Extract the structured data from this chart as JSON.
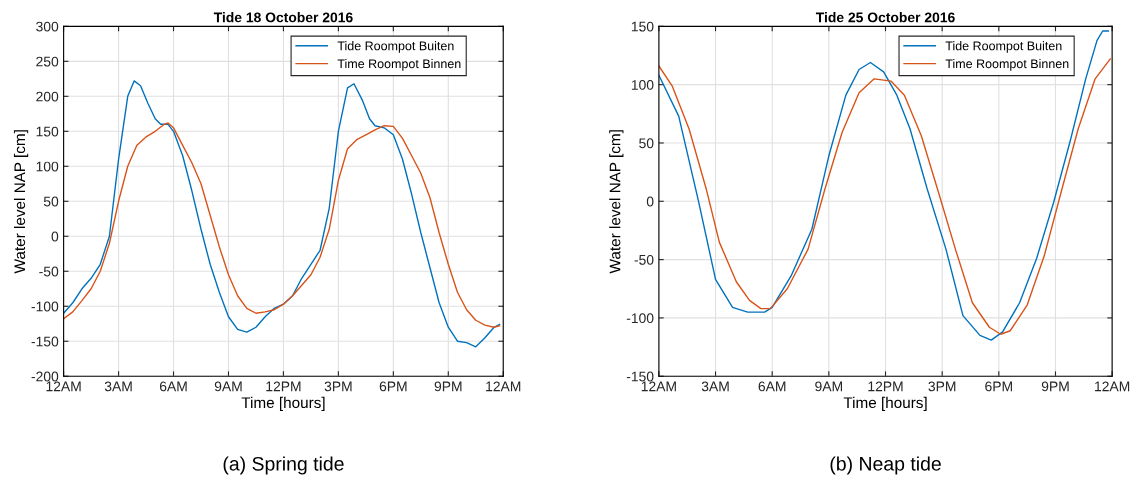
{
  "chart_data": [
    {
      "type": "line",
      "title": "Tide 18 October 2016",
      "xlabel": "Time [hours]",
      "ylabel": "Water level NAP [cm]",
      "xlim": [
        "2016-10-18T00:00",
        "2016-10-19T00:00"
      ],
      "xticks": [
        {
          "value": "2016-10-18T00:00",
          "label": "12AM"
        },
        {
          "value": "2016-10-18T03:00",
          "label": "3AM"
        },
        {
          "value": "2016-10-18T06:00",
          "label": "6AM"
        },
        {
          "value": "2016-10-18T09:00",
          "label": "9AM"
        },
        {
          "value": "2016-10-18T12:00",
          "label": "12PM"
        },
        {
          "value": "2016-10-18T15:00",
          "label": "3PM"
        },
        {
          "value": "2016-10-18T18:00",
          "label": "6PM"
        },
        {
          "value": "2016-10-18T21:00",
          "label": "9PM"
        },
        {
          "value": "2016-10-19T00:00",
          "label": "12AM"
        }
      ],
      "ylim": [
        -200,
        300
      ],
      "yticks": [
        -200,
        -150,
        -100,
        -50,
        0,
        50,
        100,
        150,
        200,
        250,
        300
      ],
      "grid": true,
      "legend": "top right",
      "annotations": [
        "(a) Spring tide"
      ],
      "series": [
        {
          "name": "Tide Roompot Buiten",
          "color": "#0072bd",
          "x": [
            "2016-10-18T00:00",
            "2016-10-18T00:30",
            "2016-10-18T01:00",
            "2016-10-18T01:30",
            "2016-10-18T02:00",
            "2016-10-18T02:30",
            "2016-10-18T03:00",
            "2016-10-18T03:30",
            "2016-10-18T03:51",
            "2016-10-18T04:12",
            "2016-10-18T04:36",
            "2016-10-18T05:00",
            "2016-10-18T05:18",
            "2016-10-18T05:42",
            "2016-10-18T06:00",
            "2016-10-18T06:30",
            "2016-10-18T07:00",
            "2016-10-18T07:30",
            "2016-10-18T08:00",
            "2016-10-18T08:30",
            "2016-10-18T09:00",
            "2016-10-18T09:30",
            "2016-10-18T10:00",
            "2016-10-18T10:30",
            "2016-10-18T11:00",
            "2016-10-18T11:30",
            "2016-10-18T12:00",
            "2016-10-18T12:30",
            "2016-10-18T13:00",
            "2016-10-18T13:30",
            "2016-10-18T14:00",
            "2016-10-18T14:30",
            "2016-10-18T15:00",
            "2016-10-18T15:30",
            "2016-10-18T15:51",
            "2016-10-18T16:18",
            "2016-10-18T16:42",
            "2016-10-18T17:00",
            "2016-10-18T17:30",
            "2016-10-18T18:00",
            "2016-10-18T18:30",
            "2016-10-18T19:00",
            "2016-10-18T19:30",
            "2016-10-18T20:00",
            "2016-10-18T20:30",
            "2016-10-18T21:00",
            "2016-10-18T21:30",
            "2016-10-18T22:00",
            "2016-10-18T22:30",
            "2016-10-18T23:00",
            "2016-10-18T23:30",
            "2016-10-18T23:48"
          ],
          "values": [
            -110,
            -95,
            -75,
            -60,
            -40,
            0,
            110,
            200,
            222,
            215,
            190,
            168,
            160,
            160,
            150,
            115,
            65,
            10,
            -40,
            -80,
            -115,
            -133,
            -137,
            -130,
            -115,
            -103,
            -97,
            -85,
            -60,
            -40,
            -20,
            40,
            150,
            212,
            218,
            195,
            168,
            158,
            155,
            145,
            110,
            60,
            5,
            -45,
            -95,
            -130,
            -150,
            -152,
            -158,
            -145,
            -130,
            -126
          ]
        },
        {
          "name": "Time Roompot Binnen",
          "color": "#d95319",
          "x": [
            "2016-10-18T00:00",
            "2016-10-18T00:30",
            "2016-10-18T01:00",
            "2016-10-18T01:30",
            "2016-10-18T02:00",
            "2016-10-18T02:30",
            "2016-10-18T03:00",
            "2016-10-18T03:30",
            "2016-10-18T04:00",
            "2016-10-18T04:30",
            "2016-10-18T05:00",
            "2016-10-18T05:30",
            "2016-10-18T05:42",
            "2016-10-18T06:00",
            "2016-10-18T06:30",
            "2016-10-18T07:00",
            "2016-10-18T07:30",
            "2016-10-18T08:00",
            "2016-10-18T08:30",
            "2016-10-18T09:00",
            "2016-10-18T09:30",
            "2016-10-18T10:00",
            "2016-10-18T10:30",
            "2016-10-18T11:00",
            "2016-10-18T11:30",
            "2016-10-18T12:00",
            "2016-10-18T12:30",
            "2016-10-18T13:00",
            "2016-10-18T13:30",
            "2016-10-18T14:00",
            "2016-10-18T14:30",
            "2016-10-18T15:00",
            "2016-10-18T15:30",
            "2016-10-18T16:00",
            "2016-10-18T16:30",
            "2016-10-18T17:00",
            "2016-10-18T17:30",
            "2016-10-18T18:00",
            "2016-10-18T18:30",
            "2016-10-18T19:00",
            "2016-10-18T19:30",
            "2016-10-18T20:00",
            "2016-10-18T20:30",
            "2016-10-18T21:00",
            "2016-10-18T21:30",
            "2016-10-18T22:00",
            "2016-10-18T22:30",
            "2016-10-18T23:00",
            "2016-10-18T23:30",
            "2016-10-18T23:48"
          ],
          "values": [
            -118,
            -108,
            -92,
            -75,
            -50,
            -10,
            50,
            100,
            130,
            142,
            150,
            160,
            162,
            155,
            130,
            105,
            75,
            30,
            -15,
            -55,
            -85,
            -103,
            -110,
            -108,
            -105,
            -97,
            -85,
            -70,
            -55,
            -30,
            10,
            80,
            125,
            138,
            145,
            152,
            158,
            157,
            140,
            115,
            90,
            55,
            5,
            -40,
            -80,
            -105,
            -120,
            -127,
            -130,
            -128
          ]
        }
      ]
    },
    {
      "type": "line",
      "title": "Tide 25 October 2016",
      "xlabel": "Time [hours]",
      "ylabel": "Water level NAP [cm]",
      "xlim": [
        "2016-10-25T00:00",
        "2016-10-26T00:00"
      ],
      "xticks": [
        {
          "value": "2016-10-25T00:00",
          "label": "12AM"
        },
        {
          "value": "2016-10-25T03:00",
          "label": "3AM"
        },
        {
          "value": "2016-10-25T06:00",
          "label": "6AM"
        },
        {
          "value": "2016-10-25T09:00",
          "label": "9AM"
        },
        {
          "value": "2016-10-25T12:00",
          "label": "12PM"
        },
        {
          "value": "2016-10-25T15:00",
          "label": "3PM"
        },
        {
          "value": "2016-10-25T18:00",
          "label": "6PM"
        },
        {
          "value": "2016-10-25T21:00",
          "label": "9PM"
        },
        {
          "value": "2016-10-26T00:00",
          "label": "12AM"
        }
      ],
      "ylim": [
        -150,
        150
      ],
      "yticks": [
        -150,
        -100,
        -50,
        0,
        50,
        100,
        150
      ],
      "grid": true,
      "legend": "top right",
      "annotations": [
        "(b) Neap tide"
      ],
      "series": [
        {
          "name": "Tide Roompot Buiten",
          "color": "#0072bd",
          "x": [
            "2016-10-25T00:00",
            "2016-10-25T01:03",
            "2016-10-25T02:06",
            "2016-10-25T03:00",
            "2016-10-25T03:54",
            "2016-10-25T04:42",
            "2016-10-25T05:36",
            "2016-10-25T06:00",
            "2016-10-25T07:00",
            "2016-10-25T08:06",
            "2016-10-25T09:00",
            "2016-10-25T09:54",
            "2016-10-25T10:36",
            "2016-10-25T11:12",
            "2016-10-25T11:54",
            "2016-10-25T12:36",
            "2016-10-25T13:18",
            "2016-10-25T14:12",
            "2016-10-25T15:12",
            "2016-10-25T16:06",
            "2016-10-25T17:00",
            "2016-10-25T17:36",
            "2016-10-25T18:12",
            "2016-10-25T19:06",
            "2016-10-25T20:00",
            "2016-10-25T20:54",
            "2016-10-25T21:48",
            "2016-10-25T22:36",
            "2016-10-25T23:12",
            "2016-10-25T23:30",
            "2016-10-25T23:48"
          ],
          "values": [
            108,
            73,
            0,
            -67,
            -91,
            -95,
            -95,
            -91,
            -64,
            -24,
            39,
            91,
            113,
            119,
            111,
            91,
            62,
            11,
            -41,
            -98,
            -115,
            -119,
            -112,
            -87,
            -49,
            -1,
            53,
            105,
            138,
            146,
            146
          ]
        },
        {
          "name": "Time Roompot Binnen",
          "color": "#d95319",
          "x": [
            "2016-10-25T00:00",
            "2016-10-25T00:42",
            "2016-10-25T01:36",
            "2016-10-25T02:30",
            "2016-10-25T03:12",
            "2016-10-25T04:06",
            "2016-10-25T04:48",
            "2016-10-25T05:24",
            "2016-10-25T05:54",
            "2016-10-25T06:48",
            "2016-10-25T07:54",
            "2016-10-25T08:48",
            "2016-10-25T09:42",
            "2016-10-25T10:36",
            "2016-10-25T11:24",
            "2016-10-25T12:18",
            "2016-10-25T13:00",
            "2016-10-25T13:54",
            "2016-10-25T14:48",
            "2016-10-25T15:42",
            "2016-10-25T16:36",
            "2016-10-25T17:30",
            "2016-10-25T18:06",
            "2016-10-25T18:36",
            "2016-10-25T19:30",
            "2016-10-25T20:24",
            "2016-10-25T21:18",
            "2016-10-25T22:12",
            "2016-10-25T23:06",
            "2016-10-25T23:54"
          ],
          "values": [
            116,
            99,
            62,
            11,
            -35,
            -69,
            -85,
            -92,
            -92,
            -75,
            -41,
            11,
            59,
            93,
            105,
            103,
            91,
            56,
            8,
            -41,
            -87,
            -108,
            -114,
            -111,
            -89,
            -47,
            8,
            62,
            105,
            122
          ]
        }
      ]
    }
  ]
}
